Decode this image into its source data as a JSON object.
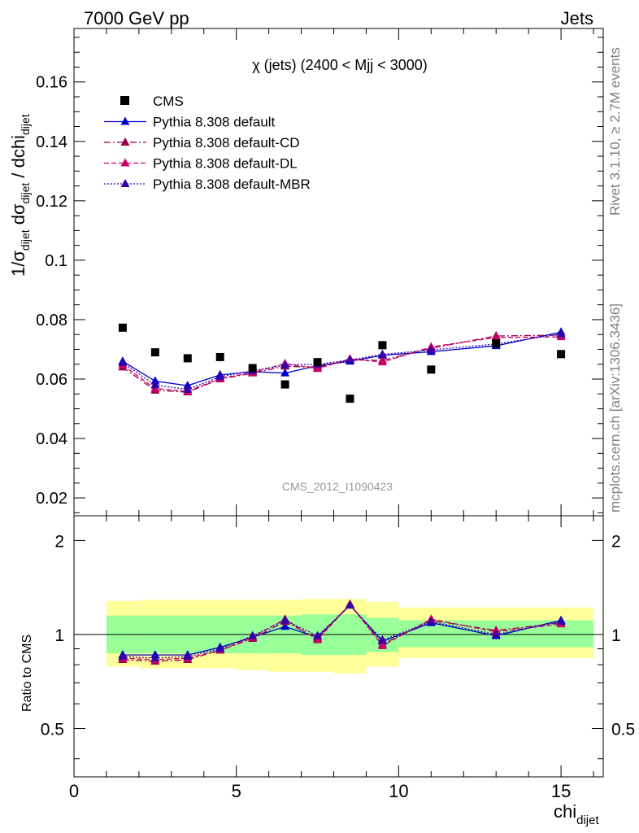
{
  "header": {
    "left": "7000 GeV pp",
    "right": "Jets"
  },
  "side_labels": {
    "rivet": "Rivet 3.1.10, ≥ 2.7M events",
    "mcplots": "mcplots.cern.ch [arXiv:1306.3436]"
  },
  "main_panel": {
    "title": "χ (jets) (2400 < Mjj < 3000)",
    "analysis_id": "CMS_2012_I1090423",
    "ylabel": "1/σdijet dσdijet / dchidijet",
    "ytick_labels": [
      "0.02",
      "0.04",
      "0.06",
      "0.08",
      "0.1",
      "0.12",
      "0.14",
      "0.16"
    ]
  },
  "ratio_panel": {
    "ylabel": "Ratio to CMS",
    "ytick_labels": [
      "0.5",
      "1",
      "2"
    ]
  },
  "x_axis": {
    "label": "chidijet",
    "tick_labels": [
      "0",
      "5",
      "10",
      "15"
    ]
  },
  "legend": [
    {
      "name": "CMS",
      "color": "#000000",
      "style": "square-marker"
    },
    {
      "name": "Pythia 8.308 default",
      "color": "#0000cc",
      "style": "solid"
    },
    {
      "name": "Pythia 8.308 default-CD",
      "color": "#99004d",
      "style": "dashdot"
    },
    {
      "name": "Pythia 8.308 default-DL",
      "color": "#cc0066",
      "style": "dashed"
    },
    {
      "name": "Pythia 8.308 default-MBR",
      "color": "#3300aa",
      "style": "dotted"
    }
  ],
  "chart_data": {
    "type": "scatter",
    "xlim": [
      0,
      16.3
    ],
    "ylim": [
      0.014,
      0.178
    ],
    "ratio_ylim": [
      0.35,
      2.4
    ],
    "ratio_scale": "log",
    "x": [
      1.5,
      2.5,
      3.5,
      4.5,
      5.5,
      6.5,
      7.5,
      8.5,
      9.5,
      11.0,
      13.0,
      15.0
    ],
    "bin_edges": [
      1,
      2,
      3,
      4,
      5,
      6,
      7,
      8,
      9,
      10,
      12,
      14,
      16
    ],
    "data": {
      "name": "CMS",
      "values": [
        0.0773,
        0.069,
        0.067,
        0.0674,
        0.0637,
        0.0582,
        0.0657,
        0.0534,
        0.0714,
        0.0632,
        0.072,
        0.0684
      ]
    },
    "series": [
      {
        "name": "Pythia 8.308 default",
        "values": [
          0.066,
          0.0593,
          0.0578,
          0.0614,
          0.0625,
          0.062,
          0.0645,
          0.066,
          0.068,
          0.0692,
          0.0712,
          0.0758
        ],
        "ratio": [
          0.86,
          0.86,
          0.86,
          0.91,
          0.98,
          1.06,
          0.98,
          1.24,
          0.95,
          1.09,
          0.99,
          1.11
        ]
      },
      {
        "name": "Pythia 8.308 default-CD",
        "values": [
          0.064,
          0.0562,
          0.0556,
          0.06,
          0.062,
          0.0643,
          0.064,
          0.0665,
          0.0663,
          0.0704,
          0.0745,
          0.0748
        ],
        "ratio": [
          0.83,
          0.82,
          0.83,
          0.89,
          0.97,
          1.1,
          0.97,
          1.25,
          0.93,
          1.11,
          1.03,
          1.09
        ]
      },
      {
        "name": "Pythia 8.308 default-DL",
        "values": [
          0.0648,
          0.0568,
          0.0559,
          0.0602,
          0.0622,
          0.0652,
          0.0635,
          0.0668,
          0.0657,
          0.0708,
          0.074,
          0.0742
        ],
        "ratio": [
          0.84,
          0.83,
          0.84,
          0.89,
          0.98,
          1.12,
          0.96,
          1.25,
          0.92,
          1.12,
          1.02,
          1.08
        ]
      },
      {
        "name": "Pythia 8.308 default-MBR",
        "values": [
          0.0655,
          0.058,
          0.0565,
          0.0608,
          0.0628,
          0.0647,
          0.065,
          0.0664,
          0.0683,
          0.0698,
          0.0718,
          0.0752
        ],
        "ratio": [
          0.85,
          0.84,
          0.85,
          0.9,
          0.99,
          1.11,
          0.99,
          1.24,
          0.96,
          1.1,
          1.0,
          1.1
        ]
      }
    ],
    "uncertainty_bands": {
      "inner_low": [
        0.87,
        0.87,
        0.87,
        0.87,
        0.87,
        0.87,
        0.86,
        0.86,
        0.88,
        0.91,
        0.91,
        0.91
      ],
      "inner_high": [
        1.15,
        1.15,
        1.15,
        1.15,
        1.15,
        1.15,
        1.16,
        1.16,
        1.13,
        1.11,
        1.11,
        1.11
      ],
      "outer_low": [
        0.79,
        0.78,
        0.78,
        0.78,
        0.77,
        0.76,
        0.76,
        0.75,
        0.79,
        0.84,
        0.84,
        0.84
      ],
      "outer_high": [
        1.28,
        1.29,
        1.29,
        1.29,
        1.29,
        1.29,
        1.3,
        1.3,
        1.27,
        1.22,
        1.22,
        1.22
      ]
    }
  }
}
